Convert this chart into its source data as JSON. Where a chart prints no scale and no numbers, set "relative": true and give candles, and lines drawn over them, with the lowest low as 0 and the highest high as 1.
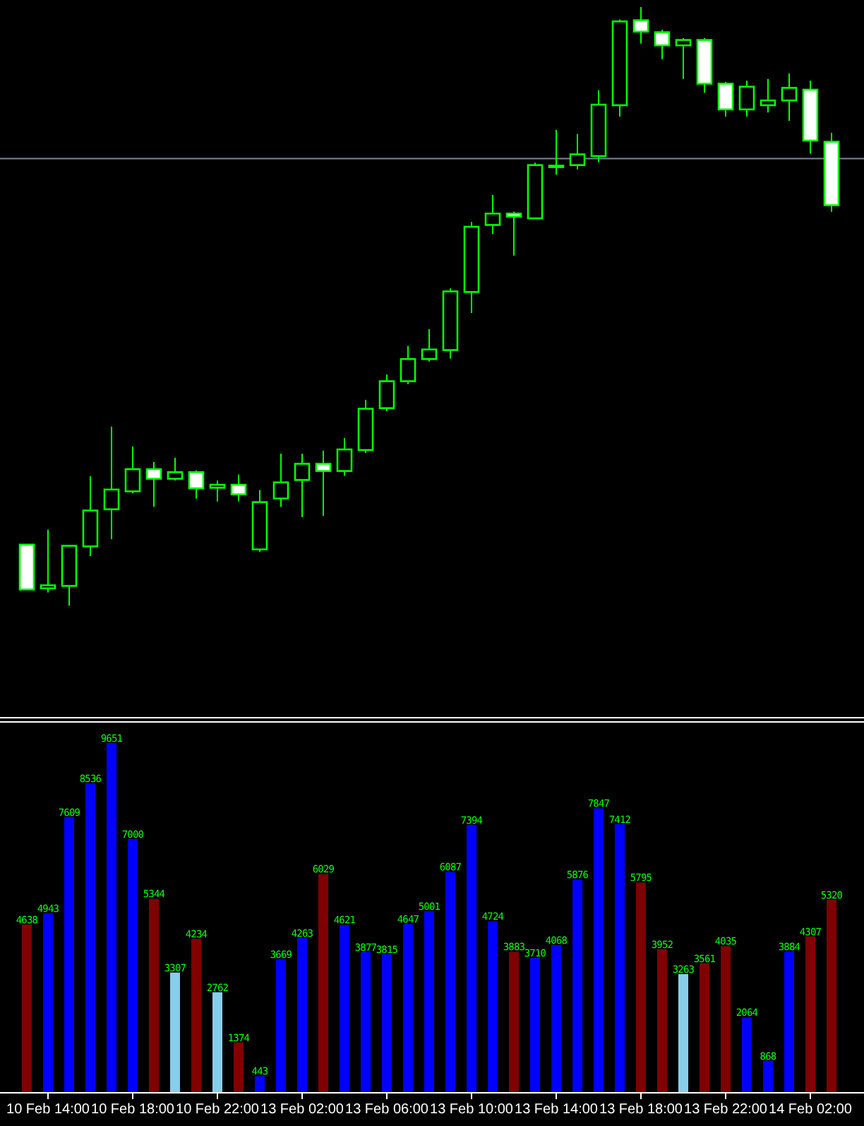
{
  "chart_data": [
    {
      "type": "candlestick",
      "relative": true,
      "color": "#00ff00",
      "categories": [
        null,
        null,
        null,
        null,
        null,
        null,
        null,
        null,
        null,
        null,
        null,
        null,
        null,
        null,
        null,
        null,
        null,
        null,
        null,
        null,
        null,
        null,
        null,
        null,
        null,
        null,
        null,
        null,
        null,
        null,
        null,
        null,
        null,
        null,
        null,
        null,
        null,
        null,
        null
      ],
      "ohlc": [
        [
          0.102,
          0.103,
          0.027,
          0.027
        ],
        [
          0.029,
          0.127,
          0.022,
          0.034
        ],
        [
          0.033,
          0.1,
          0,
          0.1
        ],
        [
          0.099,
          0.216,
          0.083,
          0.159
        ],
        [
          0.161,
          0.299,
          0.111,
          0.194
        ],
        [
          0.191,
          0.266,
          0.188,
          0.228
        ],
        [
          0.228,
          0.24,
          0.165,
          0.212
        ],
        [
          0.212,
          0.247,
          0.209,
          0.223
        ],
        [
          0.223,
          0.226,
          0.179,
          0.196
        ],
        [
          0.197,
          0.209,
          0.174,
          0.202
        ],
        [
          0.202,
          0.219,
          0.174,
          0.186
        ],
        [
          0.094,
          0.193,
          0.09,
          0.173
        ],
        [
          0.179,
          0.254,
          0.165,
          0.206
        ],
        [
          0.21,
          0.254,
          0.148,
          0.237
        ],
        [
          0.237,
          0.259,
          0.15,
          0.225
        ],
        [
          0.225,
          0.28,
          0.217,
          0.261
        ],
        [
          0.26,
          0.344,
          0.255,
          0.329
        ],
        [
          0.33,
          0.386,
          0.325,
          0.375
        ],
        [
          0.375,
          0.434,
          0.37,
          0.412
        ],
        [
          0.412,
          0.462,
          0.408,
          0.428
        ],
        [
          0.427,
          0.53,
          0.413,
          0.525
        ],
        [
          0.524,
          0.641,
          0.489,
          0.633
        ],
        [
          0.636,
          0.686,
          0.621,
          0.655
        ],
        [
          0.655,
          0.658,
          0.585,
          0.65
        ],
        [
          0.647,
          0.74,
          0.646,
          0.736
        ],
        [
          0.735,
          0.795,
          0.72,
          0.735
        ],
        [
          0.736,
          0.788,
          0.729,
          0.754
        ],
        [
          0.751,
          0.861,
          0.741,
          0.837
        ],
        [
          0.836,
          0.979,
          0.817,
          0.976
        ],
        [
          0.978,
          1,
          0.939,
          0.959
        ],
        [
          0.958,
          0.962,
          0.913,
          0.936
        ],
        [
          0.936,
          0.948,
          0.88,
          0.945
        ],
        [
          0.945,
          0.948,
          0.857,
          0.872
        ],
        [
          0.872,
          0.875,
          0.817,
          0.829
        ],
        [
          0.829,
          0.877,
          0.817,
          0.867
        ],
        [
          0.836,
          0.88,
          0.824,
          0.844
        ],
        [
          0.844,
          0.889,
          0.81,
          0.865
        ],
        [
          0.862,
          0.877,
          0.755,
          0.777
        ],
        [
          0.775,
          0.79,
          0.658,
          0.669
        ]
      ],
      "ref_lines": [
        {
          "axis": "y",
          "value": 0.747,
          "color": "#778899"
        }
      ]
    },
    {
      "type": "bar",
      "data_labels": true,
      "categories": [
        null,
        "10 Feb 14:00",
        null,
        null,
        null,
        "10 Feb 18:00",
        null,
        null,
        null,
        "10 Feb 22:00",
        null,
        null,
        null,
        "13 Feb 02:00",
        null,
        null,
        null,
        "13 Feb 06:00",
        null,
        null,
        null,
        "13 Feb 10:00",
        null,
        null,
        null,
        "13 Feb 14:00",
        null,
        null,
        null,
        "13 Feb 18:00",
        null,
        null,
        null,
        "13 Feb 22:00",
        null,
        null,
        null,
        "14 Feb 02:00",
        null
      ],
      "values": [
        4638,
        4943,
        7609,
        8536,
        9651,
        7000,
        5344,
        3307,
        4234,
        2762,
        1374,
        443,
        3669,
        4263,
        6029,
        4621,
        3877,
        3815,
        4647,
        5001,
        6087,
        7394,
        4724,
        3883,
        3710,
        4068,
        5876,
        7847,
        7412,
        5795,
        3952,
        3263,
        3561,
        4035,
        2064,
        868,
        3884,
        4307,
        5320
      ],
      "colors": [
        "#800000",
        "#0000ff",
        "#0000ff",
        "#0000ff",
        "#0000ff",
        "#0000ff",
        "#800000",
        "#87ceeb",
        "#800000",
        "#87ceeb",
        "#800000",
        "#0000ff",
        "#0000ff",
        "#0000ff",
        "#800000",
        "#0000ff",
        "#0000ff",
        "#0000ff",
        "#0000ff",
        "#0000ff",
        "#0000ff",
        "#0000ff",
        "#0000ff",
        "#800000",
        "#0000ff",
        "#0000ff",
        "#0000ff",
        "#0000ff",
        "#0000ff",
        "#800000",
        "#800000",
        "#87ceeb",
        "#800000",
        "#800000",
        "#0000ff",
        "#0000ff",
        "#0000ff",
        "#800000",
        "#800000"
      ]
    }
  ]
}
